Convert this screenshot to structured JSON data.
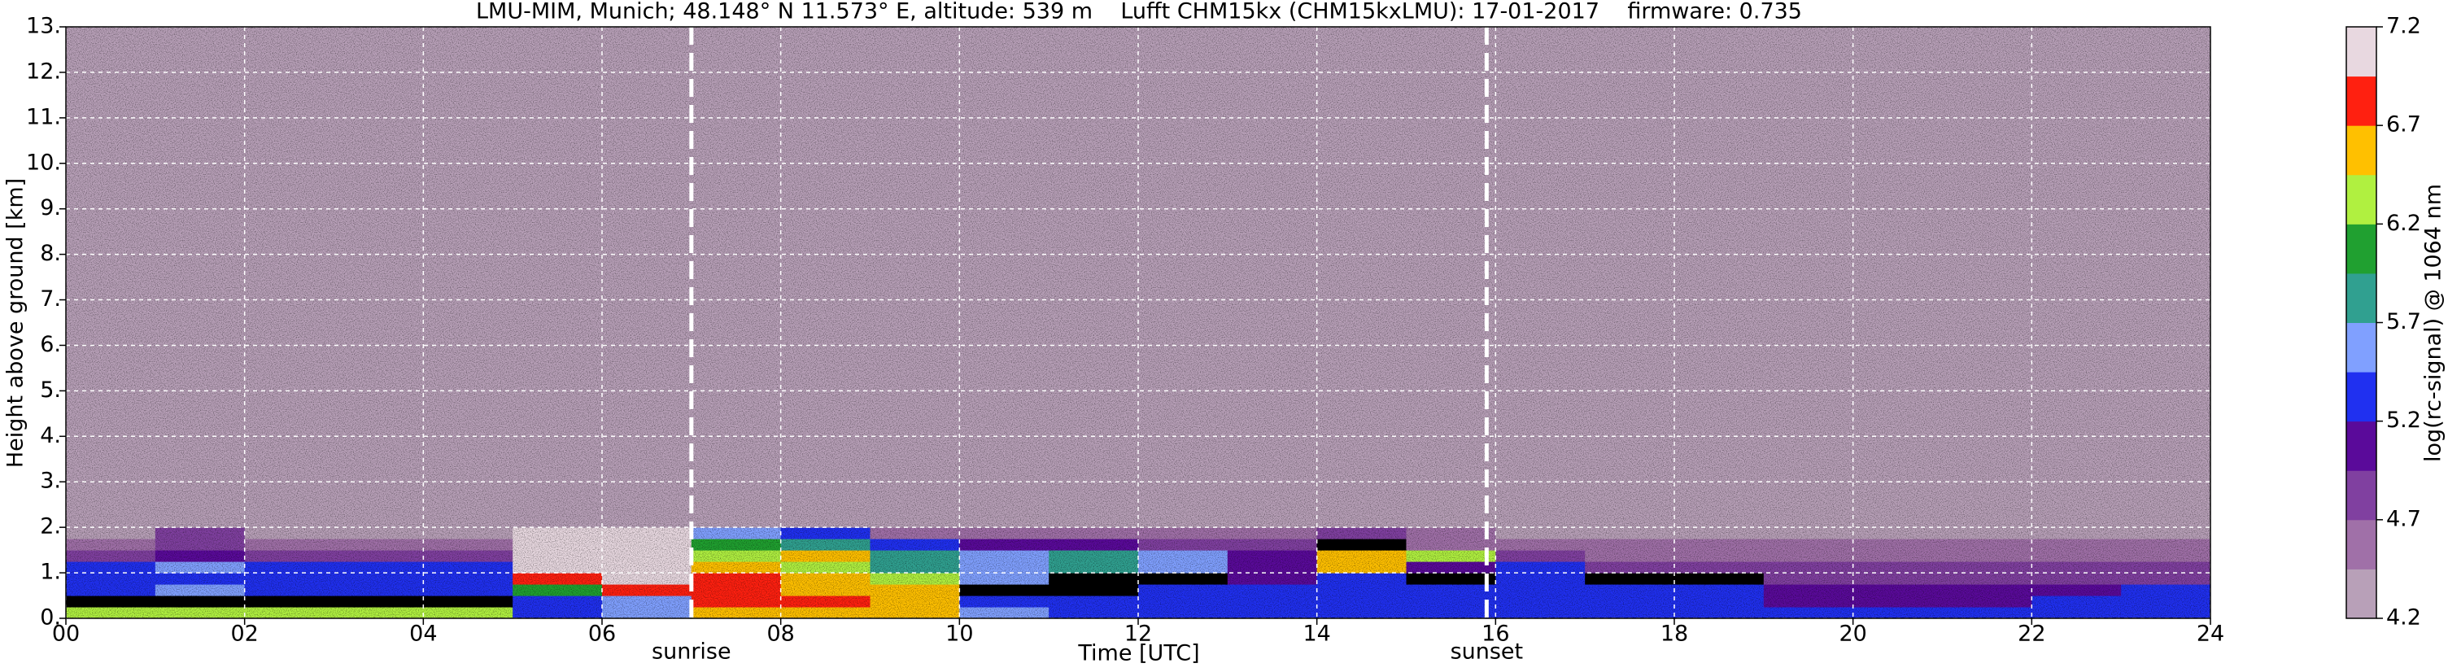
{
  "chart_data": {
    "type": "heatmap",
    "title": "LMU-MIM, Munich; 48.148° N 11.573° E, altitude: 539 m    Lufft CHM15kx (CHM15kxLMU): 17-01-2017    firmware: 0.735",
    "x_label": "Time [UTC]",
    "y_label": "Height above ground [km]",
    "colorbar_label": "log(rc-signal) @ 1064 nm",
    "x_bins": [
      0,
      1,
      2,
      3,
      4,
      5,
      6,
      7,
      8,
      9,
      10,
      11,
      12,
      13,
      14,
      15,
      16,
      17,
      18,
      19,
      20,
      21,
      22,
      23,
      24
    ],
    "y_bins": [
      0,
      0.25,
      0.5,
      0.75,
      1.0,
      1.25,
      1.5,
      1.75,
      2.0,
      13
    ],
    "z": [
      [
        6.3,
        6.3,
        6.2,
        6.2,
        6.2,
        5.4,
        5.5,
        6.5,
        6.6,
        6.6,
        5.5,
        5.4,
        5.4,
        5.3,
        5.3,
        5.3,
        5.4,
        5.4,
        5.3,
        5.3,
        5.3,
        5.3,
        5.3,
        5.3
      ],
      [
        4.0,
        4.0,
        4.0,
        4.0,
        4.0,
        5.4,
        5.6,
        6.8,
        6.7,
        6.6,
        5.4,
        5.3,
        5.3,
        5.4,
        5.3,
        5.3,
        5.4,
        5.4,
        5.3,
        5.1,
        5.1,
        5.0,
        5.2,
        5.3
      ],
      [
        5.3,
        5.6,
        5.3,
        5.3,
        5.3,
        6.0,
        6.8,
        6.9,
        6.6,
        6.5,
        4.0,
        4.0,
        5.4,
        5.3,
        5.3,
        5.3,
        5.4,
        5.3,
        5.3,
        5.0,
        5.0,
        5.0,
        5.1,
        5.2
      ],
      [
        5.3,
        5.4,
        5.3,
        5.3,
        5.3,
        6.9,
        7.0,
        6.9,
        6.6,
        6.3,
        5.5,
        4.0,
        4.0,
        5.0,
        5.3,
        4.0,
        5.2,
        4.0,
        4.0,
        4.8,
        4.8,
        4.8,
        4.8,
        4.8
      ],
      [
        5.4,
        5.5,
        5.4,
        5.4,
        5.4,
        7.0,
        7.1,
        6.5,
        6.4,
        5.8,
        5.6,
        5.9,
        5.6,
        5.0,
        6.6,
        5.0,
        5.2,
        4.8,
        4.8,
        4.8,
        4.8,
        4.8,
        4.8,
        4.8
      ],
      [
        4.8,
        5.0,
        4.8,
        4.8,
        4.9,
        7.0,
        7.1,
        6.3,
        6.5,
        5.7,
        5.5,
        5.9,
        5.6,
        5.0,
        6.5,
        6.3,
        4.8,
        4.6,
        4.6,
        4.6,
        4.5,
        4.5,
        4.5,
        4.5
      ],
      [
        4.6,
        4.8,
        4.6,
        4.6,
        4.6,
        7.1,
        7.1,
        6.0,
        5.8,
        5.3,
        5.0,
        5.0,
        4.8,
        4.8,
        4.0,
        4.6,
        4.6,
        4.5,
        4.5,
        4.5,
        4.5,
        4.5,
        4.5,
        4.5
      ],
      [
        4.4,
        4.8,
        4.4,
        4.4,
        4.4,
        7.0,
        7.0,
        5.6,
        5.2,
        4.6,
        4.6,
        4.6,
        4.5,
        4.5,
        4.8,
        4.5,
        4.4,
        4.4,
        4.4,
        4.4,
        4.4,
        4.4,
        4.4,
        4.4
      ],
      [
        4.3,
        4.3,
        4.3,
        4.3,
        4.3,
        4.3,
        4.3,
        4.3,
        4.3,
        4.3,
        4.3,
        4.3,
        4.3,
        4.3,
        4.3,
        4.3,
        4.3,
        4.3,
        4.3,
        4.3,
        4.3,
        4.3,
        4.3,
        4.3
      ]
    ],
    "colormap": [
      "#b8a0b8",
      "#a070a8",
      "#8040a0",
      "#5a0a9a",
      "#2030f0",
      "#80a0ff",
      "#30a090",
      "#20a030",
      "#b0f040",
      "#ffc000",
      "#ff2010",
      "#e8d8e0"
    ],
    "top_color": "#ffffff",
    "under_color": "#000000",
    "zlim": [
      4.2,
      7.2
    ],
    "zticks": [
      4.2,
      4.7,
      5.2,
      5.7,
      6.2,
      6.7,
      7.2
    ],
    "xlim": [
      0,
      24
    ],
    "xticks": [
      {
        "value": 0,
        "label": "00"
      },
      {
        "value": 2,
        "label": "02"
      },
      {
        "value": 4,
        "label": "04"
      },
      {
        "value": 6,
        "label": "06"
      },
      {
        "value": 8,
        "label": "08"
      },
      {
        "value": 10,
        "label": "10"
      },
      {
        "value": 12,
        "label": "12"
      },
      {
        "value": 14,
        "label": "14"
      },
      {
        "value": 16,
        "label": "16"
      },
      {
        "value": 18,
        "label": "18"
      },
      {
        "value": 20,
        "label": "20"
      },
      {
        "value": 22,
        "label": "22"
      },
      {
        "value": 24,
        "label": "24"
      }
    ],
    "ylim": [
      0,
      13
    ],
    "yticks": [
      {
        "value": 0,
        "label": "0."
      },
      {
        "value": 1,
        "label": "1."
      },
      {
        "value": 2,
        "label": "2."
      },
      {
        "value": 3,
        "label": "3."
      },
      {
        "value": 4,
        "label": "4."
      },
      {
        "value": 5,
        "label": "5."
      },
      {
        "value": 6,
        "label": "6."
      },
      {
        "value": 7,
        "label": "7."
      },
      {
        "value": 8,
        "label": "8."
      },
      {
        "value": 9,
        "label": "9."
      },
      {
        "value": 10,
        "label": "10."
      },
      {
        "value": 11,
        "label": "11."
      },
      {
        "value": 12,
        "label": "12."
      },
      {
        "value": 13,
        "label": "13."
      }
    ],
    "grid": true,
    "annotations": [
      {
        "text": "sunrise",
        "x": 7.0
      },
      {
        "text": "sunset",
        "x": 15.9
      }
    ]
  }
}
